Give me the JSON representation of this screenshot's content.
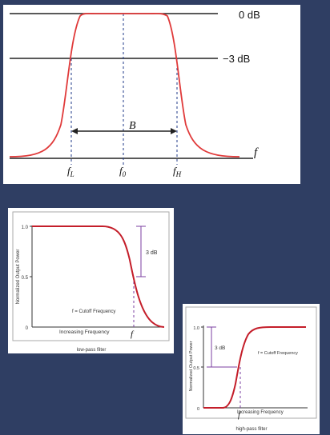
{
  "bandpass": {
    "label_0db": "0 dB",
    "label_3db": "−3 dB",
    "label_bandwidth": "B",
    "label_f": "f",
    "label_fl_main": "f",
    "label_fl_sub": "L",
    "label_f0_main": "f",
    "label_f0_sub": "0",
    "label_fh_main": "f",
    "label_fh_sub": "H",
    "colors": {
      "curve": "#e03a3a",
      "axis": "#222222",
      "dashed": "#1f3a8a"
    }
  },
  "lowpass": {
    "tick_top": "1.0",
    "tick_mid": "0.5",
    "tick_zero": "0",
    "y_label": "Normalized Output Power",
    "x_label": "Increasing Frequency",
    "drop_label": "3 dB",
    "cutoff_label": "f = Cutoff Frequency",
    "f_label": "f",
    "caption": "low-pass filter",
    "colors": {
      "curve": "#c41e2a",
      "guide": "#7b3fa0"
    }
  },
  "highpass": {
    "tick_top": "1.0",
    "tick_mid": "0.5",
    "tick_zero": "0",
    "y_label": "Normalized Output Power",
    "x_label": "Increasing Frequency",
    "drop_label": "3 dB",
    "cutoff_label": "f = Cutoff Frequency",
    "f_label": "f",
    "caption": "high-pass filter",
    "colors": {
      "curve": "#c41e2a",
      "guide": "#7b3fa0"
    }
  }
}
